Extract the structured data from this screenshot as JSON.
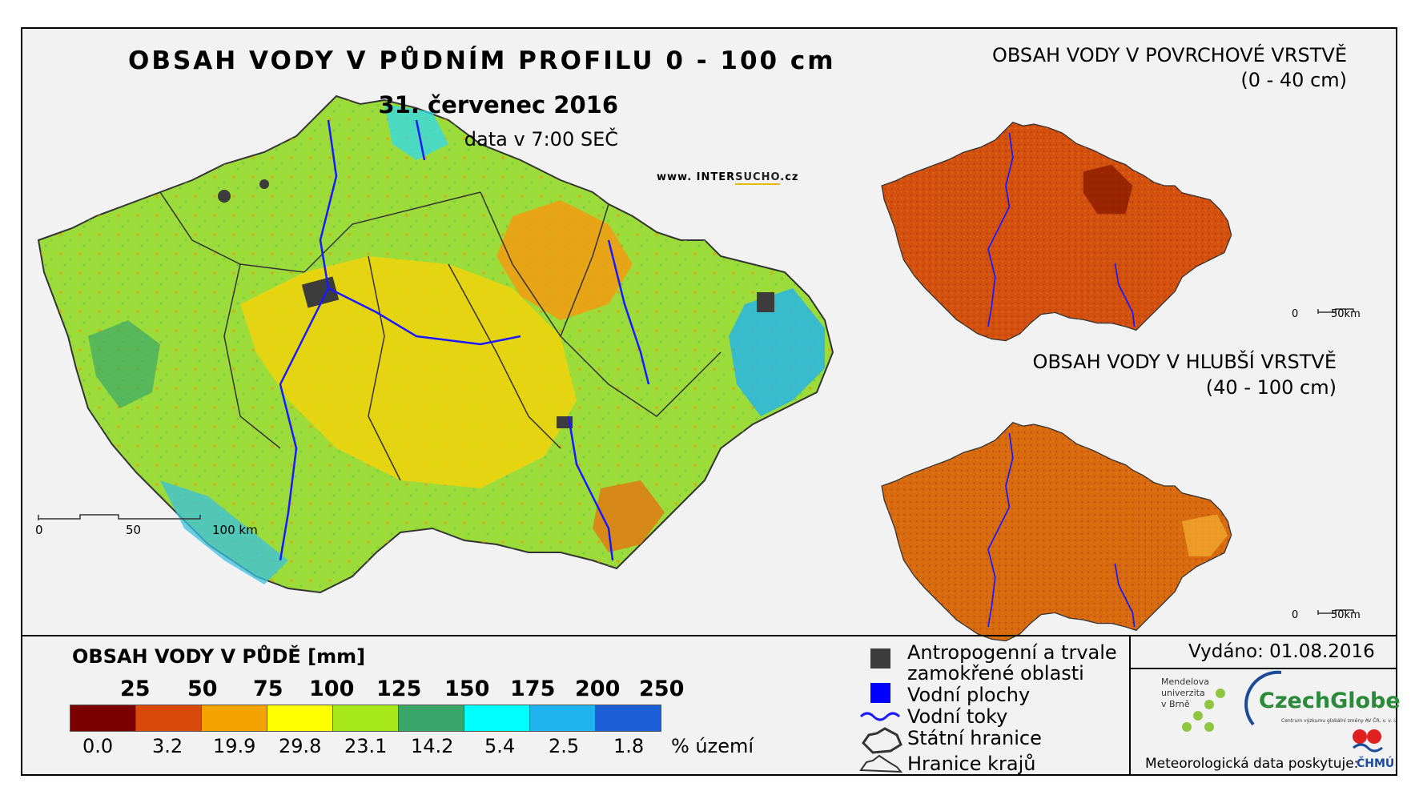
{
  "main_map": {
    "title": "OBSAH VODY V PŮDNÍM PROFILU 0 - 100 cm",
    "date": "31. červenec 2016",
    "time": "data v 7:00 SEČ",
    "website_prefix": "www. INTER",
    "website_highlight": "SUCHO",
    "website_suffix": ".cz",
    "scale_labels": [
      "0",
      "50",
      "100 km"
    ]
  },
  "surface_map": {
    "title_line1": "OBSAH VODY V POVRCHOVÉ VRSTVĚ",
    "title_line2": "(0 - 40 cm)",
    "scale_labels": [
      "0",
      "50km"
    ]
  },
  "deep_map": {
    "title_line1": "OBSAH VODY V HLUBŠÍ VRSTVĚ",
    "title_line2": "(40 - 100 cm)",
    "scale_labels": [
      "0",
      "50km"
    ]
  },
  "legend": {
    "title": "OBSAH VODY V PŮDĚ [mm]",
    "thresholds": [
      "25",
      "50",
      "75",
      "100",
      "125",
      "150",
      "175",
      "200",
      "250"
    ],
    "colors": [
      "#7a0000",
      "#d94a0a",
      "#f5a300",
      "#ffff00",
      "#a6e81a",
      "#3aa66a",
      "#00ffff",
      "#1fb4f0",
      "#1a5fd6"
    ],
    "percentages": [
      "0.0",
      "3.2",
      "19.9",
      "29.8",
      "23.1",
      "14.2",
      "5.4",
      "2.5",
      "1.8"
    ],
    "percent_label": "% území"
  },
  "symbols": {
    "anthropogenic_line1": "Antropogenní a trvale",
    "anthropogenic_line2": "zamokřené oblasti",
    "water_bodies": "Vodní plochy",
    "rivers": "Vodní toky",
    "state_border": "Státní hranice",
    "region_border": "Hranice krajů",
    "anthropogenic_color": "#3c3c3c",
    "water_color": "#0000ff",
    "river_color": "#1a1aff"
  },
  "credits": {
    "issued": "Vydáno: 01.08.2016",
    "mendel": [
      "Mendelova",
      "univerzita",
      "v Brně"
    ],
    "czechglobe": "CzechGlobe",
    "czechglobe_sub": "Centrum výzkumu globální změny AV ČR, v. v. i.",
    "meteo": "Meteorologická data poskytuje:",
    "chmi": "ČHMÚ"
  }
}
